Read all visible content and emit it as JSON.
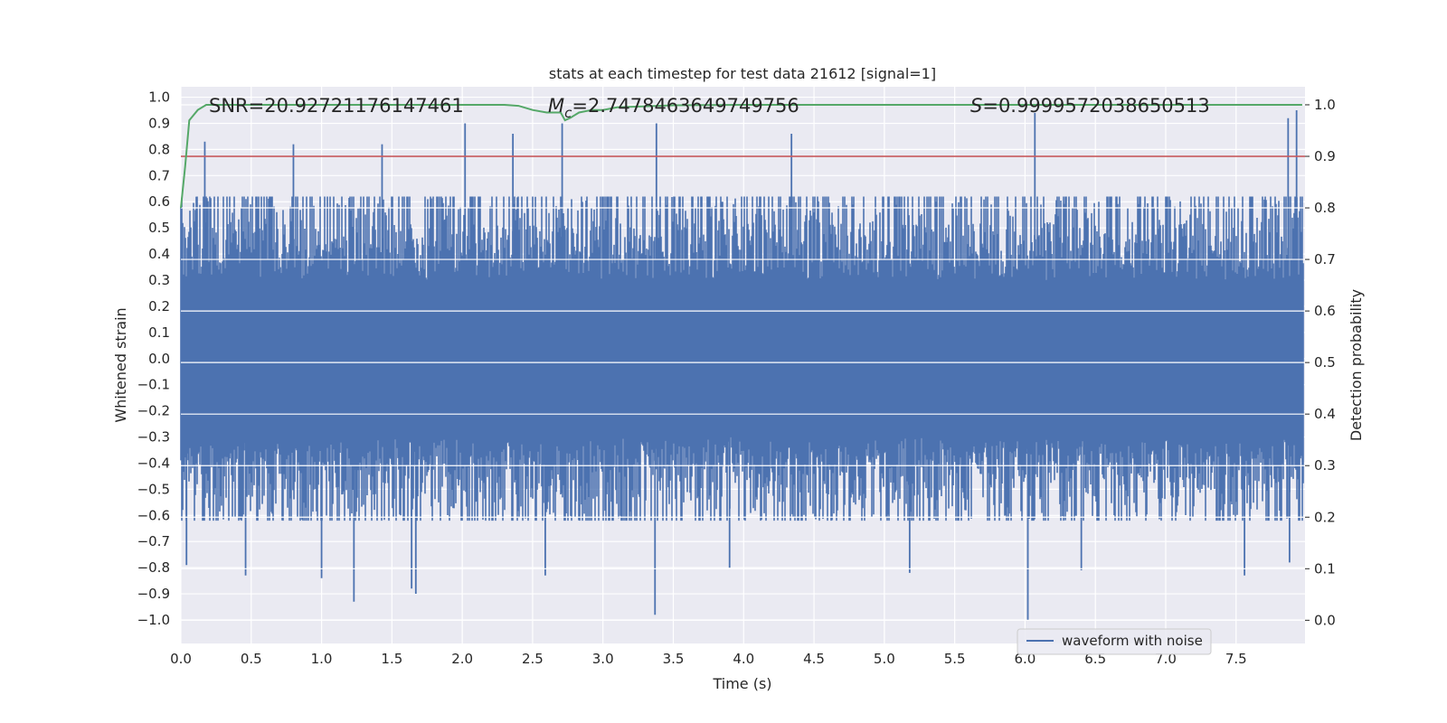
{
  "chart_data": {
    "type": "line",
    "title": "stats at each timestep for test data 21612 [signal=1]",
    "xlabel": "Time (s)",
    "ylabel": "Whitened strain",
    "y2label": "Detection probability",
    "xlim": [
      0.0,
      7.99
    ],
    "ylim": [
      -1.09,
      1.04
    ],
    "y2lim": [
      -0.045,
      1.035
    ],
    "xticks": [
      "0.0",
      "0.5",
      "1.0",
      "1.5",
      "2.0",
      "2.5",
      "3.0",
      "3.5",
      "4.0",
      "4.5",
      "5.0",
      "5.5",
      "6.0",
      "6.5",
      "7.0",
      "7.5"
    ],
    "yticks": [
      "1.0",
      "0.9",
      "0.8",
      "0.7",
      "0.6",
      "0.5",
      "0.4",
      "0.3",
      "0.2",
      "0.1",
      "0.0",
      "−0.1",
      "−0.2",
      "−0.3",
      "−0.4",
      "−0.5",
      "−0.6",
      "−0.7",
      "−0.8",
      "−0.9",
      "−1.0"
    ],
    "y2ticks": [
      "1.0",
      "0.9",
      "0.8",
      "0.7",
      "0.6",
      "0.5",
      "0.4",
      "0.3",
      "0.2",
      "0.1",
      "0.0"
    ],
    "annotations": {
      "snr": "SNR=20.92721176147461",
      "mc_symbol": "M",
      "mc_sub": "c",
      "mc_value": "=2.7478463649749756",
      "s_symbol": "S",
      "s_value": "=0.9999572038650513"
    },
    "threshold": {
      "axis": "y2",
      "value": 0.9,
      "color": "#c44e52"
    },
    "legend": {
      "label": "waveform with noise",
      "position": "lower-right"
    },
    "series": [
      {
        "name": "waveform with noise",
        "axis": "y",
        "color": "#4c72b0",
        "envelope_approx": {
          "core_low": -0.3,
          "core_high": 0.3,
          "typical_extreme": 0.6
        },
        "peaks": [
          {
            "x": 0.17,
            "y": 0.83
          },
          {
            "x": 0.8,
            "y": 0.82
          },
          {
            "x": 1.43,
            "y": 0.82
          },
          {
            "x": 2.02,
            "y": 0.9
          },
          {
            "x": 2.36,
            "y": 0.86
          },
          {
            "x": 2.71,
            "y": 0.9
          },
          {
            "x": 3.38,
            "y": 0.9
          },
          {
            "x": 4.34,
            "y": 0.86
          },
          {
            "x": 6.07,
            "y": 0.94
          },
          {
            "x": 7.87,
            "y": 0.92
          },
          {
            "x": 7.93,
            "y": 0.95
          }
        ],
        "troughs": [
          {
            "x": 0.04,
            "y": -0.79
          },
          {
            "x": 0.46,
            "y": -0.83
          },
          {
            "x": 1.0,
            "y": -0.84
          },
          {
            "x": 1.23,
            "y": -0.93
          },
          {
            "x": 1.64,
            "y": -0.88
          },
          {
            "x": 1.67,
            "y": -0.9
          },
          {
            "x": 2.59,
            "y": -0.83
          },
          {
            "x": 3.37,
            "y": -0.98
          },
          {
            "x": 3.9,
            "y": -0.8
          },
          {
            "x": 5.18,
            "y": -0.82
          },
          {
            "x": 6.02,
            "y": -1.0
          },
          {
            "x": 6.4,
            "y": -0.81
          },
          {
            "x": 7.56,
            "y": -0.83
          },
          {
            "x": 7.88,
            "y": -0.78
          }
        ]
      },
      {
        "name": "detection probability",
        "axis": "y2",
        "color": "#55a868",
        "x": [
          0.0,
          0.03,
          0.06,
          0.12,
          0.18,
          0.5,
          1.0,
          1.5,
          2.0,
          2.3,
          2.4,
          2.5,
          2.6,
          2.7,
          2.73,
          2.77,
          2.83,
          2.92,
          3.0,
          3.1,
          3.5,
          4.0,
          5.0,
          6.0,
          7.0,
          7.5,
          7.97
        ],
        "values": [
          0.8,
          0.88,
          0.97,
          0.99,
          1.0,
          1.0,
          1.0,
          1.0,
          1.0,
          1.0,
          0.998,
          0.99,
          0.985,
          0.985,
          0.97,
          0.975,
          0.985,
          0.99,
          0.99,
          0.995,
          0.999,
          1.0,
          1.0,
          1.0,
          1.0,
          1.0,
          1.0
        ]
      }
    ]
  }
}
